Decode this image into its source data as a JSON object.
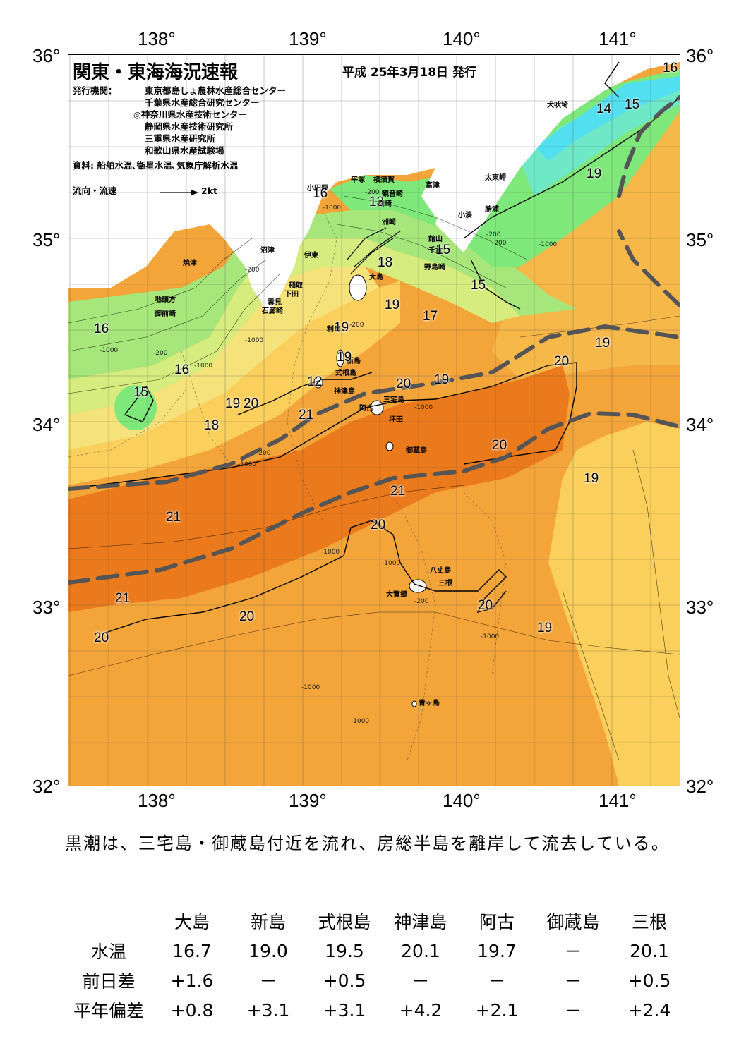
{
  "map": {
    "title": "関東・東海海況速報",
    "publish_date": "平成 25年3月18日 発行",
    "issuer_label": "発行機関：",
    "issuers": [
      "東京都島しょ農林水産総合センター",
      "千葉県水産総合研究センター",
      "◎神奈川県水産技術センター",
      "静岡県水産技術研究所",
      "三重県水産研究所",
      "和歌山県水産試験場"
    ],
    "sources": "資料: 船舶水温､衛星水温､気象庁解析水温",
    "legend_flow": "流向・流速",
    "legend_speed": "2kt",
    "lon_ticks": [
      "138°",
      "139°",
      "140°",
      "141°"
    ],
    "lat_ticks": [
      "36°",
      "35°",
      "34°",
      "33°",
      "32°"
    ],
    "places": [
      {
        "name": "犬吠埼"
      },
      {
        "name": "太東岬"
      },
      {
        "name": "勝浦"
      },
      {
        "name": "小湊"
      },
      {
        "name": "富津"
      },
      {
        "name": "横須賀"
      },
      {
        "name": "平塚"
      },
      {
        "name": "小田原"
      },
      {
        "name": "観音崎"
      },
      {
        "name": "剣崎"
      },
      {
        "name": "洲崎"
      },
      {
        "name": "館山"
      },
      {
        "name": "千倉"
      },
      {
        "name": "野島崎"
      },
      {
        "name": "沼津"
      },
      {
        "name": "伊東"
      },
      {
        "name": "稲取"
      },
      {
        "name": "下田"
      },
      {
        "name": "雲見"
      },
      {
        "name": "石廊崎"
      },
      {
        "name": "焼津"
      },
      {
        "name": "地頭方"
      },
      {
        "name": "御前崎"
      },
      {
        "name": "大島"
      },
      {
        "name": "利島"
      },
      {
        "name": "新島"
      },
      {
        "name": "式根島"
      },
      {
        "name": "神津島"
      },
      {
        "name": "三宅島"
      },
      {
        "name": "阿古"
      },
      {
        "name": "坪田"
      },
      {
        "name": "御蔵島"
      },
      {
        "name": "八丈島"
      },
      {
        "name": "三根"
      },
      {
        "name": "大賀郷"
      },
      {
        "name": "青ヶ島"
      }
    ],
    "isotherm_labels": [
      "16",
      "14",
      "15",
      "19",
      "16",
      "13",
      "18",
      "15",
      "15",
      "19",
      "17",
      "16",
      "15",
      "16",
      "19",
      "18",
      "19",
      "20",
      "21",
      "20",
      "19",
      "19",
      "20",
      "20",
      "19",
      "21",
      "21",
      "20",
      "20",
      "21",
      "20",
      "19",
      "20",
      "12",
      "19"
    ],
    "depth_labels": [
      "-200",
      "-1000",
      "-200",
      "-1000",
      "-200",
      "-1000",
      "-200",
      "-200",
      "-1000",
      "-1000",
      "-1000",
      "-1000",
      "-1000",
      "-1000",
      "-200",
      "-1000",
      "-200",
      "-200",
      "-1000",
      "-1000"
    ],
    "colors": {
      "t13": "#52e0f0",
      "t14": "#6fe8c8",
      "t15": "#7ee87a",
      "t16": "#a6e67a",
      "t17": "#d6ec7e",
      "t18": "#f6e27a",
      "t19": "#fbcf5c",
      "t20": "#f4a53a",
      "t21": "#ea7a1c",
      "kuroshio": "#555555",
      "land": "#ffffff"
    }
  },
  "summary": {
    "text": "黒潮は、三宅島・御蔵島付近を流れ、房総半島を離岸して流去している。"
  },
  "table": {
    "stations": [
      "大島",
      "新島",
      "式根島",
      "神津島",
      "阿古",
      "御蔵島",
      "三根"
    ],
    "rows": [
      {
        "label": "水温",
        "values": [
          "16.7",
          "19.0",
          "19.5",
          "20.1",
          "19.7",
          "－",
          "20.1"
        ]
      },
      {
        "label": "前日差",
        "values": [
          "+1.6",
          "－",
          "+0.5",
          "－",
          "－",
          "－",
          "+0.5"
        ]
      },
      {
        "label": "平年偏差",
        "values": [
          "+0.8",
          "+3.1",
          "+3.1",
          "+4.2",
          "+2.1",
          "－",
          "+2.4"
        ]
      }
    ]
  }
}
